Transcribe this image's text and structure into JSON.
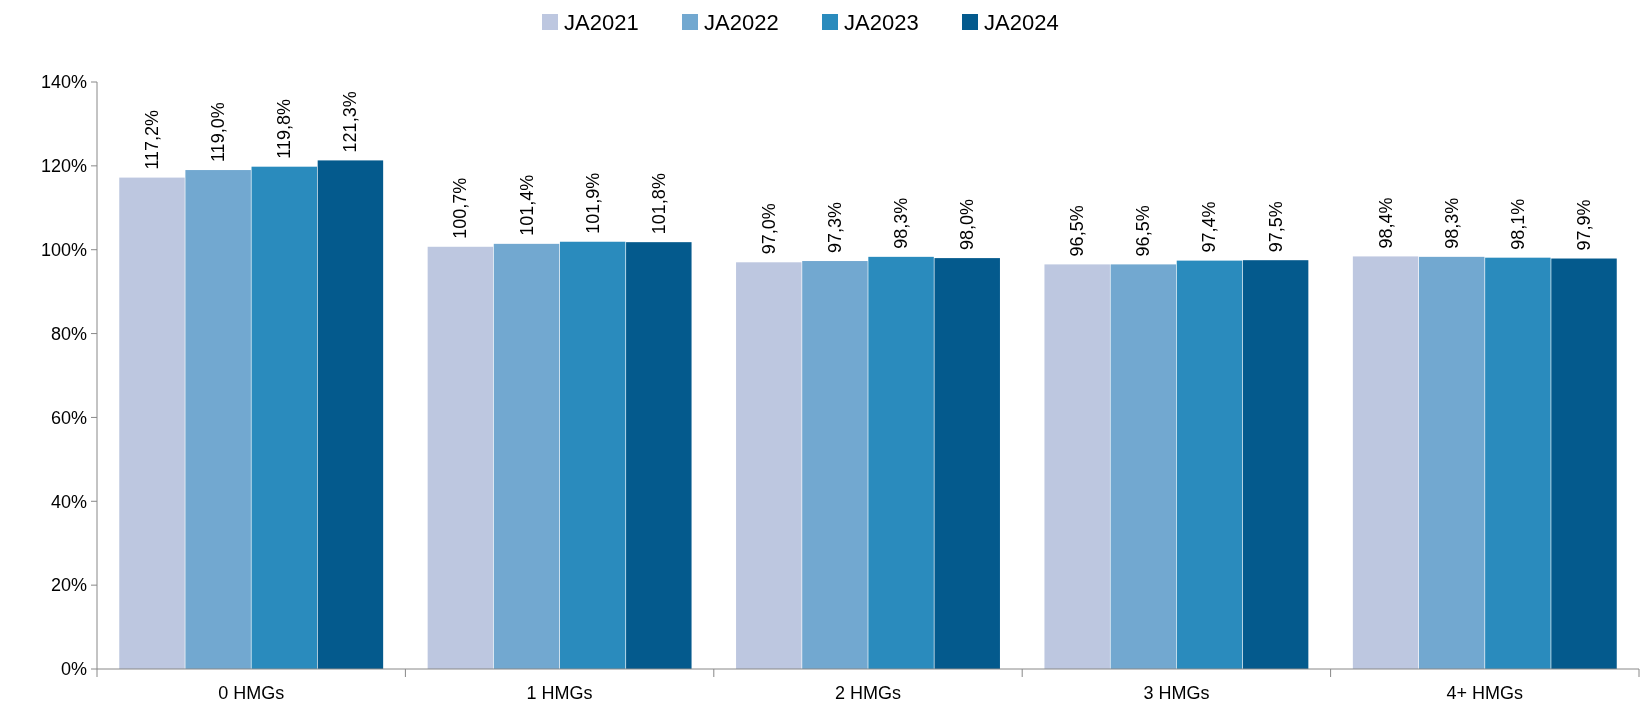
{
  "chart_data": {
    "type": "bar",
    "categories": [
      "0 HMGs",
      "1 HMGs",
      "2 HMGs",
      "3 HMGs",
      "4+ HMGs"
    ],
    "series": [
      {
        "name": "JA2021",
        "color": "#bdc7e0",
        "values": [
          117.2,
          100.7,
          97.0,
          96.5,
          98.4
        ],
        "value_labels": [
          "117,2%",
          "100,7%",
          "97,0%",
          "96,5%",
          "98,4%"
        ]
      },
      {
        "name": "JA2022",
        "color": "#72a8d0",
        "values": [
          119.0,
          101.4,
          97.3,
          96.5,
          98.3
        ],
        "value_labels": [
          "119,0%",
          "101,4%",
          "97,3%",
          "96,5%",
          "98,3%"
        ]
      },
      {
        "name": "JA2023",
        "color": "#2a8bbd",
        "values": [
          119.8,
          101.9,
          98.3,
          97.4,
          98.1
        ],
        "value_labels": [
          "119,8%",
          "101,9%",
          "98,3%",
          "97,4%",
          "98,1%"
        ]
      },
      {
        "name": "JA2024",
        "color": "#045a8d",
        "values": [
          121.3,
          101.8,
          98.0,
          97.5,
          97.9
        ],
        "value_labels": [
          "121,3%",
          "101,8%",
          "98,0%",
          "97,5%",
          "97,9%"
        ]
      }
    ],
    "ylim": [
      0,
      140
    ],
    "yticks": [
      {
        "value": 0,
        "label": "0%"
      },
      {
        "value": 20,
        "label": "20%"
      },
      {
        "value": 40,
        "label": "40%"
      },
      {
        "value": 60,
        "label": "60%"
      },
      {
        "value": 80,
        "label": "80%"
      },
      {
        "value": 100,
        "label": "100%"
      },
      {
        "value": 120,
        "label": "120%"
      },
      {
        "value": 140,
        "label": "140%"
      }
    ],
    "grid": false,
    "legend": "top"
  }
}
